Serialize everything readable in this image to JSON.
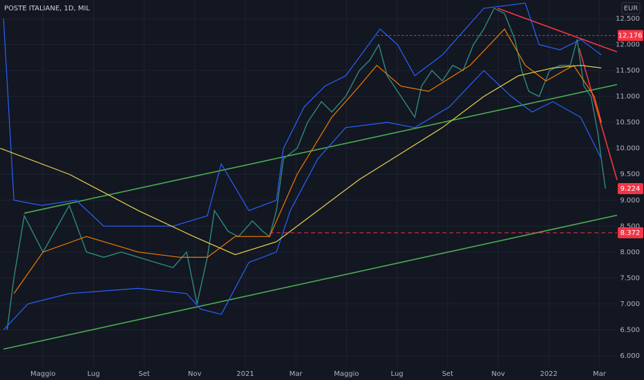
{
  "chart_data": {
    "type": "line",
    "title": "POSTE ITALIANE, 1D, MIL",
    "currency": "EUR",
    "xlim": [
      -1.7,
      22.7
    ],
    "ylim": [
      5.8,
      12.86
    ],
    "xticks": [
      {
        "value": 0,
        "label": "Maggio"
      },
      {
        "value": 2,
        "label": "Lug"
      },
      {
        "value": 4,
        "label": "Set"
      },
      {
        "value": 6,
        "label": "Nov"
      },
      {
        "value": 8,
        "label": "2021"
      },
      {
        "value": 10,
        "label": "Mar"
      },
      {
        "value": 12,
        "label": "Maggio"
      },
      {
        "value": 14,
        "label": "Lug"
      },
      {
        "value": 16,
        "label": "Set"
      },
      {
        "value": 18,
        "label": "Nov"
      },
      {
        "value": 20,
        "label": "2022"
      },
      {
        "value": 22,
        "label": "Mar"
      }
    ],
    "yticks": [
      {
        "value": 6,
        "label": "6.000"
      },
      {
        "value": 6.5,
        "label": "6.500"
      },
      {
        "value": 7,
        "label": "7.000"
      },
      {
        "value": 7.5,
        "label": "7.500"
      },
      {
        "value": 8,
        "label": "8.000"
      },
      {
        "value": 8.5,
        "label": "8.500"
      },
      {
        "value": 9,
        "label": "9.000"
      },
      {
        "value": 9.5,
        "label": "9.500"
      },
      {
        "value": 10,
        "label": "10.000"
      },
      {
        "value": 10.5,
        "label": "10.500"
      },
      {
        "value": 11,
        "label": "11.000"
      },
      {
        "value": 11.5,
        "label": "11.500"
      },
      {
        "value": 12,
        "label": "12.000"
      },
      {
        "value": 12.5,
        "label": "12.500"
      }
    ],
    "grid": true,
    "series": [
      {
        "color": "#2e8b7f",
        "x": [
          -1.42,
          -1.15,
          -0.74,
          0,
          1.04,
          1.72,
          2.4,
          3.09,
          3.77,
          4.45,
          5.14,
          5.68,
          6.09,
          6.5,
          6.78,
          7.32,
          7.73,
          8.28,
          8.69,
          8.96,
          9.23,
          9.51,
          10.05,
          10.46,
          11.01,
          11.42,
          11.97,
          12.51,
          12.92,
          13.28,
          13.61,
          14.02,
          14.43,
          14.7,
          14.97,
          15.38,
          15.79,
          16.2,
          16.61,
          17.02,
          17.43,
          17.84,
          18.25,
          18.66,
          18.93,
          19.21,
          19.62,
          20.03,
          20.44,
          20.85,
          21.12,
          21.39,
          21.67,
          21.94,
          22.16,
          22.24
        ],
        "values": [
          6.5,
          7.5,
          8.7,
          8.0,
          8.9,
          8.0,
          7.9,
          8.0,
          7.9,
          7.8,
          7.7,
          8.0,
          7.0,
          7.9,
          8.8,
          8.4,
          8.3,
          8.6,
          8.4,
          8.3,
          8.8,
          9.8,
          10.0,
          10.5,
          10.9,
          10.7,
          11.0,
          11.5,
          11.7,
          12.0,
          11.4,
          11.1,
          10.8,
          10.6,
          11.2,
          11.5,
          11.3,
          11.6,
          11.5,
          12.0,
          12.3,
          12.7,
          12.6,
          12.1,
          11.5,
          11.1,
          11.0,
          11.5,
          11.6,
          11.6,
          12.1,
          11.2,
          11.0,
          10.3,
          9.5,
          9.224
        ]
      },
      {
        "color": "#2962ff",
        "x": [
          -1.56,
          -1.15,
          -0.05,
          1.31,
          2.4,
          5.14,
          6.5,
          7.05,
          8.14,
          9.23,
          9.51,
          10.33,
          11.15,
          11.97,
          13.33,
          14.02,
          14.7,
          15.79,
          17.43,
          19.07,
          19.62,
          20.44,
          21.26,
          22.08
        ],
        "values": [
          12.5,
          9.0,
          8.9,
          9.0,
          8.5,
          8.5,
          8.7,
          9.7,
          8.8,
          9.0,
          10.0,
          10.8,
          11.2,
          11.4,
          12.3,
          12.0,
          11.4,
          11.8,
          12.7,
          12.8,
          12.0,
          11.9,
          12.1,
          11.8
        ]
      },
      {
        "color": "#2962ff",
        "x": [
          -1.56,
          -0.6,
          1.04,
          3.77,
          5.68,
          6.23,
          7.05,
          8.14,
          9.23,
          9.78,
          10.87,
          11.97,
          13.61,
          14.7,
          16.07,
          17.43,
          18.52,
          19.34,
          20.16,
          21.26,
          22.08
        ],
        "values": [
          6.5,
          7.0,
          7.2,
          7.3,
          7.2,
          6.9,
          6.8,
          7.8,
          8.0,
          8.8,
          9.8,
          10.4,
          10.5,
          10.4,
          10.8,
          11.5,
          11.0,
          10.7,
          10.9,
          10.6,
          9.8
        ]
      },
      {
        "color": "#f57c00",
        "x": [
          -1.15,
          0,
          1.72,
          3.77,
          5.41,
          6.5,
          7.6,
          8.96,
          10.05,
          11.42,
          12.51,
          13.2,
          14.15,
          15.25,
          16.89,
          18.25,
          19.07,
          19.89,
          20.98,
          21.8,
          22.08
        ],
        "values": [
          7.2,
          8.0,
          8.3,
          8.0,
          7.9,
          7.9,
          8.3,
          8.3,
          9.5,
          10.6,
          11.2,
          11.6,
          11.2,
          11.1,
          11.6,
          12.3,
          11.6,
          11.3,
          11.6,
          11.0,
          10.5
        ]
      },
      {
        "color": "#e8d44d",
        "x": [
          -1.69,
          1.04,
          3.77,
          5.96,
          7.6,
          9.23,
          10.87,
          12.51,
          14.15,
          15.79,
          17.43,
          18.8,
          20.16,
          21.26,
          22.08
        ],
        "values": [
          10.0,
          9.5,
          8.8,
          8.3,
          7.95,
          8.2,
          8.8,
          9.4,
          9.9,
          10.4,
          11.0,
          11.4,
          11.55,
          11.6,
          11.55
        ]
      }
    ],
    "lines": [
      {
        "color": "#4caf50",
        "x": [
          -0.74,
          22.7
        ],
        "values": [
          8.75,
          11.23
        ]
      },
      {
        "color": "#4caf50",
        "x": [
          -1.56,
          22.7
        ],
        "values": [
          6.13,
          8.71
        ]
      },
      {
        "color": "#f23645",
        "x": [
          17.98,
          22.7
        ],
        "values": [
          12.7,
          11.86
        ]
      },
      {
        "color": "#f23645",
        "x": [
          21.2,
          22.7
        ],
        "values": [
          11.93,
          9.39
        ]
      }
    ],
    "levels": [
      {
        "value": 12.176,
        "x": 13.2,
        "color": "#f23645"
      },
      {
        "value": 8.372,
        "x": 8.96,
        "color": "#f23645"
      }
    ],
    "last": 9.224,
    "last_color": "#f23645"
  }
}
